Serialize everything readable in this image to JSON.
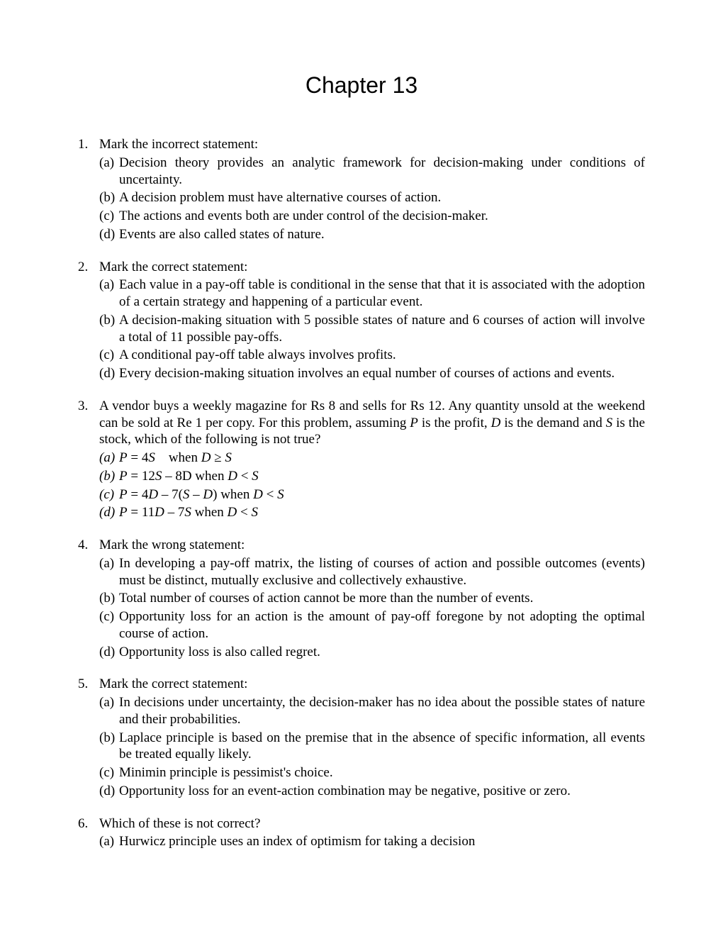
{
  "title": "Chapter 13",
  "questions": [
    {
      "num": "1.",
      "stem": "Mark the incorrect statement:",
      "options": [
        {
          "label": "(a)",
          "text": "Decision theory provides an analytic framework for decision-making under conditions of uncertainty."
        },
        {
          "label": "(b)",
          "text": "A decision problem must have alternative courses of action."
        },
        {
          "label": "(c)",
          "text": "The actions and events both are under control of the decision-maker."
        },
        {
          "label": "(d)",
          "text": "Events are also called states of nature."
        }
      ]
    },
    {
      "num": "2.",
      "stem": "Mark the correct statement:",
      "options": [
        {
          "label": "(a)",
          "text": "Each value in a pay-off table is conditional in the sense that that it is associated with the adoption of a certain strategy and happening of a particular event."
        },
        {
          "label": "(b)",
          "text": "A decision-making situation with 5 possible states of nature and 6 courses of action will involve a total of 11 possible pay-offs."
        },
        {
          "label": "(c)",
          "text": "A conditional pay-off table always involves profits."
        },
        {
          "label": "(d)",
          "text": "Every decision-making situation involves an equal number of courses of actions and events."
        }
      ]
    },
    {
      "num": "3.",
      "stem_html": "A vendor buys a weekly magazine for Rs 8 and sells for Rs 12. Any quantity unsold at the weekend can be sold at Re 1 per copy. For this problem, assuming <i>P</i> is the profit, <i>D</i> is the demand and <i>S</i> is the stock, which of the following is not true?",
      "options_html": [
        {
          "label": "(a)",
          "html": "<i>P</i> = 4<i>S</i>&nbsp;&nbsp;&nbsp;&nbsp;when <i>D</i> ≥ <i>S</i>"
        },
        {
          "label": "(b)",
          "html": "<i>P</i> = 12<i>S</i> – 8D when <i>D</i> &lt; <i>S</i>"
        },
        {
          "label": "(c)",
          "html": "<i>P</i> = 4<i>D</i> – 7(<i>S</i> – <i>D</i>) when <i>D</i> &lt; <i>S</i>"
        },
        {
          "label": "(d)",
          "html": "<i>P</i> = 11<i>D</i> – 7<i>S</i> when <i>D</i> &lt; <i>S</i>"
        }
      ],
      "label_italic": true
    },
    {
      "num": "4.",
      "stem": "Mark the wrong statement:",
      "options": [
        {
          "label": "(a)",
          "text": "In developing a pay-off matrix, the listing of courses of action and  possible outcomes (events) must be distinct, mutually exclusive and collectively exhaustive."
        },
        {
          "label": "(b)",
          "text": "Total number of courses of action cannot be more than the number of events."
        },
        {
          "label": "(c)",
          "text": "Opportunity loss for an action is the amount of pay-off foregone by not adopting the optimal course of action."
        },
        {
          "label": "(d)",
          "text": "Opportunity loss is also called regret."
        }
      ]
    },
    {
      "num": "5.",
      "stem": "Mark the correct statement:",
      "options": [
        {
          "label": "(a)",
          "text": "In decisions under uncertainty, the decision-maker has no idea about the possible states of nature and their probabilities."
        },
        {
          "label": "(b)",
          "text": "Laplace principle is based on the premise that in the absence of  specific information, all events be treated equally likely."
        },
        {
          "label": "(c)",
          "text": "Minimin principle is pessimist's choice."
        },
        {
          "label": "(d)",
          "text": "Opportunity loss for an event-action combination may be negative, positive or zero."
        }
      ]
    },
    {
      "num": "6.",
      "stem": "Which of these is not correct?",
      "options": [
        {
          "label": "(a)",
          "text": "Hurwicz principle uses an index of optimism for taking a decision"
        }
      ]
    }
  ]
}
